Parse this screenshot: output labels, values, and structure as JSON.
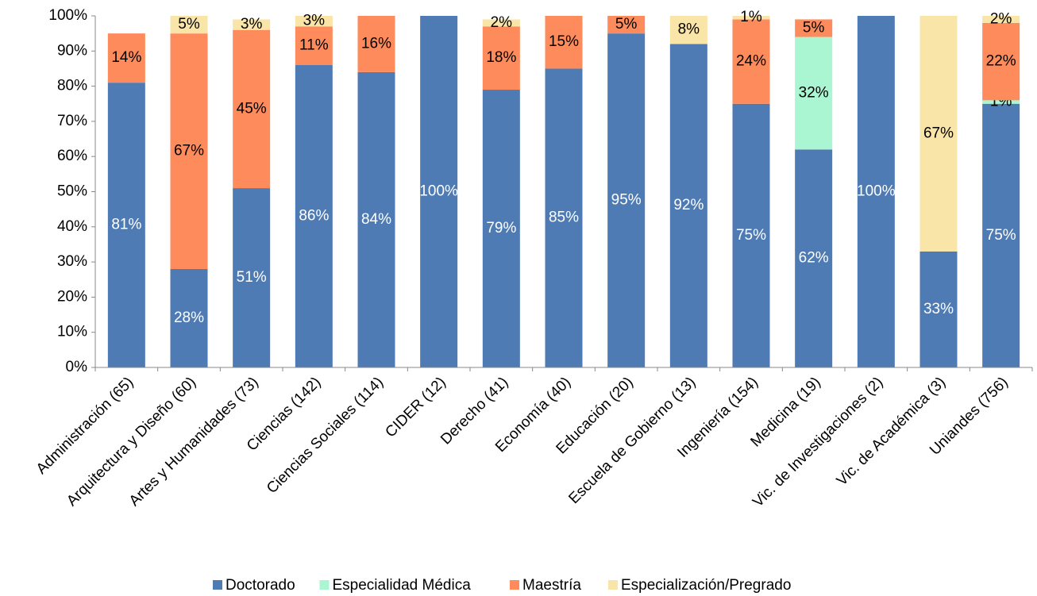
{
  "chart_data": {
    "type": "stacked_bar",
    "categories": [
      "Administración (65)",
      "Arquitectura y Diseño (60)",
      "Artes y Humanidades (73)",
      "Ciencias (142)",
      "Ciencias Sociales (114)",
      "CIDER (12)",
      "Derecho (41)",
      "Economía (40)",
      "Educación (20)",
      "Escuela de Gobierno (13)",
      "Ingeniería (154)",
      "Medicina (19)",
      "Vic. de Investigaciones (2)",
      "Vic. de Académica (3)",
      "Uniandes (756)"
    ],
    "series": [
      {
        "name": "Doctorado",
        "color": "#4f7bb5",
        "label_color": "#ffffff",
        "values": [
          81,
          28,
          51,
          86,
          84,
          100,
          79,
          85,
          95,
          92,
          75,
          62,
          100,
          33,
          75
        ],
        "value_labels": [
          "81%",
          "28%",
          "51%",
          "86%",
          "84%",
          "100%",
          "79%",
          "85%",
          "95%",
          "92%",
          "75%",
          "62%",
          "100%",
          "33%",
          "75%"
        ]
      },
      {
        "name": "Especialidad Médica",
        "color": "#aaf5d2",
        "label_color": "#000000",
        "values": [
          null,
          null,
          null,
          null,
          null,
          null,
          null,
          null,
          null,
          null,
          null,
          32,
          null,
          null,
          1
        ],
        "value_labels": [
          null,
          null,
          null,
          null,
          null,
          null,
          null,
          null,
          null,
          null,
          null,
          "32%",
          null,
          null,
          "1%"
        ]
      },
      {
        "name": "Maestría",
        "color": "#fd8b5c",
        "label_color": "#000000",
        "values": [
          14,
          67,
          45,
          11,
          16,
          null,
          18,
          15,
          5,
          null,
          24,
          5,
          null,
          null,
          22
        ],
        "value_labels": [
          "14%",
          "67%",
          "45%",
          "11%",
          "16%",
          null,
          "18%",
          "15%",
          "5%",
          null,
          "24%",
          "5%",
          null,
          null,
          "22%"
        ]
      },
      {
        "name": "Especialización/Pregrado",
        "color": "#fae5a8",
        "label_color": "#000000",
        "values": [
          null,
          5,
          3,
          3,
          null,
          null,
          2,
          null,
          null,
          8,
          1,
          null,
          null,
          67,
          2
        ],
        "value_labels": [
          null,
          "5%",
          "3%",
          "3%",
          null,
          null,
          "2%",
          null,
          null,
          "8%",
          "1%",
          null,
          null,
          "67%",
          "2%"
        ]
      }
    ],
    "ylim": [
      0,
      100
    ],
    "yticks": [
      {
        "value": 0,
        "label": "0%"
      },
      {
        "value": 10,
        "label": "10%"
      },
      {
        "value": 20,
        "label": "20%"
      },
      {
        "value": 30,
        "label": "30%"
      },
      {
        "value": 40,
        "label": "40%"
      },
      {
        "value": 50,
        "label": "50%"
      },
      {
        "value": 60,
        "label": "60%"
      },
      {
        "value": 70,
        "label": "70%"
      },
      {
        "value": 80,
        "label": "80%"
      },
      {
        "value": 90,
        "label": "90%"
      },
      {
        "value": 100,
        "label": "100%"
      }
    ],
    "grid": false,
    "legend": "bottom"
  }
}
